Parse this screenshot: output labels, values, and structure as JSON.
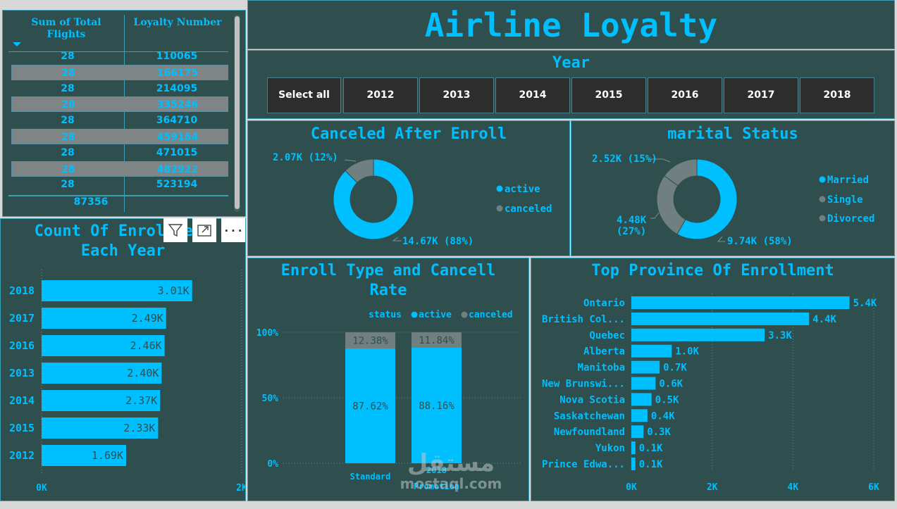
{
  "dashboard_title": "Airline Loyalty",
  "table": {
    "headers": [
      "Sum of Total Flights",
      "Loyalty Number"
    ],
    "rows": [
      {
        "flights": "28",
        "loyalty": "110065",
        "highlight": false
      },
      {
        "flights": "28",
        "loyalty": "166175",
        "highlight": true
      },
      {
        "flights": "28",
        "loyalty": "214095",
        "highlight": false
      },
      {
        "flights": "28",
        "loyalty": "335246",
        "highlight": true
      },
      {
        "flights": "28",
        "loyalty": "364710",
        "highlight": false
      },
      {
        "flights": "28",
        "loyalty": "459164",
        "highlight": true
      },
      {
        "flights": "28",
        "loyalty": "471015",
        "highlight": false
      },
      {
        "flights": "28",
        "loyalty": "482922",
        "highlight": true
      },
      {
        "flights": "28",
        "loyalty": "523194",
        "highlight": false
      }
    ],
    "total": "87356"
  },
  "year_slicer": {
    "title": "Year",
    "buttons": [
      "Select all",
      "2012",
      "2013",
      "2014",
      "2015",
      "2016",
      "2017",
      "2018"
    ]
  },
  "visual_toolbar": {
    "icons": [
      "filter-icon",
      "focus-mode-icon",
      "more-options-icon"
    ],
    "more_label": "···"
  },
  "colors": {
    "panel": "#2f4f4f",
    "accent": "#00bfff",
    "gray": "#708080",
    "border": "#3aa0b8"
  },
  "watermark": {
    "arabic": "مستقل",
    "latin": "mostaql.com"
  },
  "chart_data": [
    {
      "id": "canceled",
      "type": "pie",
      "title": "Canceled After Enroll",
      "slices": [
        {
          "name": "active",
          "value": 14670,
          "label": "14.67K (88%)",
          "color": "#00bfff"
        },
        {
          "name": "canceled",
          "value": 2070,
          "label": "2.07K (12%)",
          "color": "#708080"
        }
      ],
      "legend": [
        "active",
        "canceled"
      ],
      "legend_position": "right"
    },
    {
      "id": "marital",
      "type": "pie",
      "title": "marital Status",
      "slices": [
        {
          "name": "Married",
          "value": 9740,
          "label": "9.74K (58%)",
          "color": "#00bfff"
        },
        {
          "name": "Single",
          "value": 4480,
          "label": "4.48K (27%)",
          "color": "#708080"
        },
        {
          "name": "Divorced",
          "value": 2520,
          "label": "2.52K (15%)",
          "color": "#708080"
        }
      ],
      "legend": [
        "Married",
        "Single",
        "Divorced"
      ],
      "legend_position": "right"
    },
    {
      "id": "enroll_year",
      "type": "bar",
      "orientation": "horizontal",
      "title": "Count Of Enrollment Each Year",
      "categories": [
        "2018",
        "2017",
        "2016",
        "2013",
        "2014",
        "2015",
        "2012"
      ],
      "values": [
        3010,
        2490,
        2460,
        2400,
        2370,
        2330,
        1690
      ],
      "labels": [
        "3.01K",
        "2.49K",
        "2.46K",
        "2.40K",
        "2.37K",
        "2.33K",
        "1.69K"
      ],
      "xticks": [
        "0K",
        "2K"
      ],
      "xlim": [
        0,
        4000
      ]
    },
    {
      "id": "enroll_type",
      "type": "bar",
      "stacked": "percent",
      "title": "Enroll Type and Cancell Rate",
      "legend_title": "status",
      "categories": [
        "Standard",
        "2018 Promotion"
      ],
      "series": [
        {
          "name": "active",
          "values": [
            87.62,
            88.16
          ],
          "labels": [
            "87.62%",
            "88.16%"
          ]
        },
        {
          "name": "canceled",
          "values": [
            12.38,
            11.84
          ],
          "labels": [
            "12.38%",
            "11.84%"
          ]
        }
      ],
      "yticks": [
        "0%",
        "50%",
        "100%"
      ],
      "ylim": [
        0,
        100
      ]
    },
    {
      "id": "province",
      "type": "bar",
      "orientation": "horizontal",
      "title": "Top Province Of Enrollment",
      "categories": [
        "Ontario",
        "British Col...",
        "Quebec",
        "Alberta",
        "Manitoba",
        "New Brunswi...",
        "Nova Scotia",
        "Saskatchewan",
        "Newfoundland",
        "Yukon",
        "Prince Edwa..."
      ],
      "values": [
        5400,
        4400,
        3300,
        1000,
        700,
        600,
        500,
        400,
        300,
        100,
        100
      ],
      "labels": [
        "5.4K",
        "4.4K",
        "3.3K",
        "1.0K",
        "0.7K",
        "0.6K",
        "0.5K",
        "0.4K",
        "0.3K",
        "0.1K",
        "0.1K"
      ],
      "xticks": [
        "0K",
        "2K",
        "4K",
        "6K"
      ],
      "xlim": [
        0,
        6000
      ]
    }
  ]
}
